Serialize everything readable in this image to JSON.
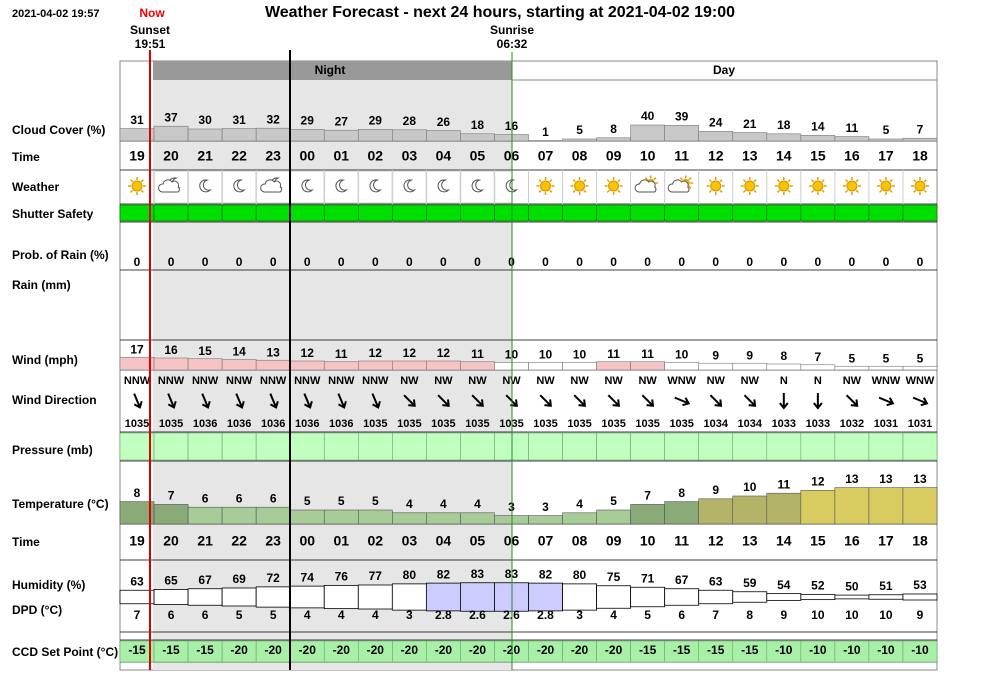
{
  "header": {
    "timestamp": "2021-04-02 19:57",
    "now": "Now",
    "title": "Weather Forecast - next 24 hours, starting at 2021-04-02 19:00",
    "sunset_label": "Sunset",
    "sunset_time": "19:51",
    "sunrise_label": "Sunrise",
    "sunrise_time": "06:32"
  },
  "bands": {
    "night": "Night",
    "day": "Day"
  },
  "hours": [
    "19",
    "20",
    "21",
    "22",
    "23",
    "00",
    "01",
    "02",
    "03",
    "04",
    "05",
    "06",
    "07",
    "08",
    "09",
    "10",
    "11",
    "12",
    "13",
    "14",
    "15",
    "16",
    "17",
    "18"
  ],
  "cloud_cover": {
    "label": "Cloud Cover (%)",
    "values": [
      31,
      37,
      30,
      31,
      32,
      29,
      27,
      29,
      28,
      26,
      18,
      16,
      1,
      5,
      8,
      40,
      39,
      24,
      21,
      18,
      14,
      11,
      5,
      7
    ]
  },
  "time_label": "Time",
  "weather_label": "Weather",
  "shutter_label": "Shutter Safety",
  "rain_prob": {
    "label": "Prob. of Rain (%)",
    "values": [
      0,
      0,
      0,
      0,
      0,
      0,
      0,
      0,
      0,
      0,
      0,
      0,
      0,
      0,
      0,
      0,
      0,
      0,
      0,
      0,
      0,
      0,
      0,
      0
    ]
  },
  "rain_label": "Rain (mm)",
  "wind": {
    "label": "Wind (mph)",
    "values": [
      17,
      16,
      15,
      14,
      13,
      12,
      11,
      12,
      12,
      12,
      11,
      10,
      10,
      10,
      11,
      11,
      10,
      9,
      9,
      8,
      7,
      5,
      5,
      5
    ]
  },
  "wind_direction": {
    "label": "Wind Direction",
    "values": [
      "NNW",
      "NNW",
      "NNW",
      "NNW",
      "NNW",
      "NNW",
      "NNW",
      "NNW",
      "NW",
      "NW",
      "NW",
      "NW",
      "NW",
      "NW",
      "NW",
      "NW",
      "WNW",
      "NW",
      "NW",
      "N",
      "N",
      "NW",
      "WNW",
      "WNW"
    ]
  },
  "pressure": {
    "label": "Pressure (mb)",
    "values": [
      1035,
      1035,
      1036,
      1036,
      1036,
      1036,
      1036,
      1035,
      1035,
      1035,
      1035,
      1035,
      1035,
      1035,
      1035,
      1035,
      1035,
      1034,
      1034,
      1033,
      1033,
      1032,
      1031,
      1031
    ]
  },
  "temperature": {
    "label": "Temperature (°C)",
    "values": [
      8,
      7,
      6,
      6,
      6,
      5,
      5,
      5,
      4,
      4,
      4,
      3,
      3,
      4,
      5,
      7,
      8,
      9,
      10,
      11,
      12,
      13,
      13,
      13
    ]
  },
  "humidity": {
    "label": "Humidity (%)",
    "values": [
      63,
      65,
      67,
      69,
      72,
      74,
      76,
      77,
      80,
      82,
      83,
      83,
      82,
      80,
      75,
      71,
      67,
      63,
      59,
      54,
      52,
      50,
      51,
      53
    ]
  },
  "dpd": {
    "label": "DPD (°C)",
    "values": [
      7,
      6,
      6,
      5,
      5,
      4,
      4,
      4,
      3,
      2.8,
      2.6,
      2.6,
      2.8,
      3,
      4,
      5,
      6,
      7,
      8,
      9,
      10,
      10,
      10,
      9
    ]
  },
  "ccd": {
    "label": "CCD Set Point (°C)",
    "values": [
      -15,
      -15,
      -15,
      -20,
      -20,
      -20,
      -20,
      -20,
      -20,
      -20,
      -20,
      -20,
      -20,
      -20,
      -20,
      -15,
      -15,
      -15,
      -15,
      -10,
      -10,
      -10,
      -10,
      -10
    ]
  }
}
